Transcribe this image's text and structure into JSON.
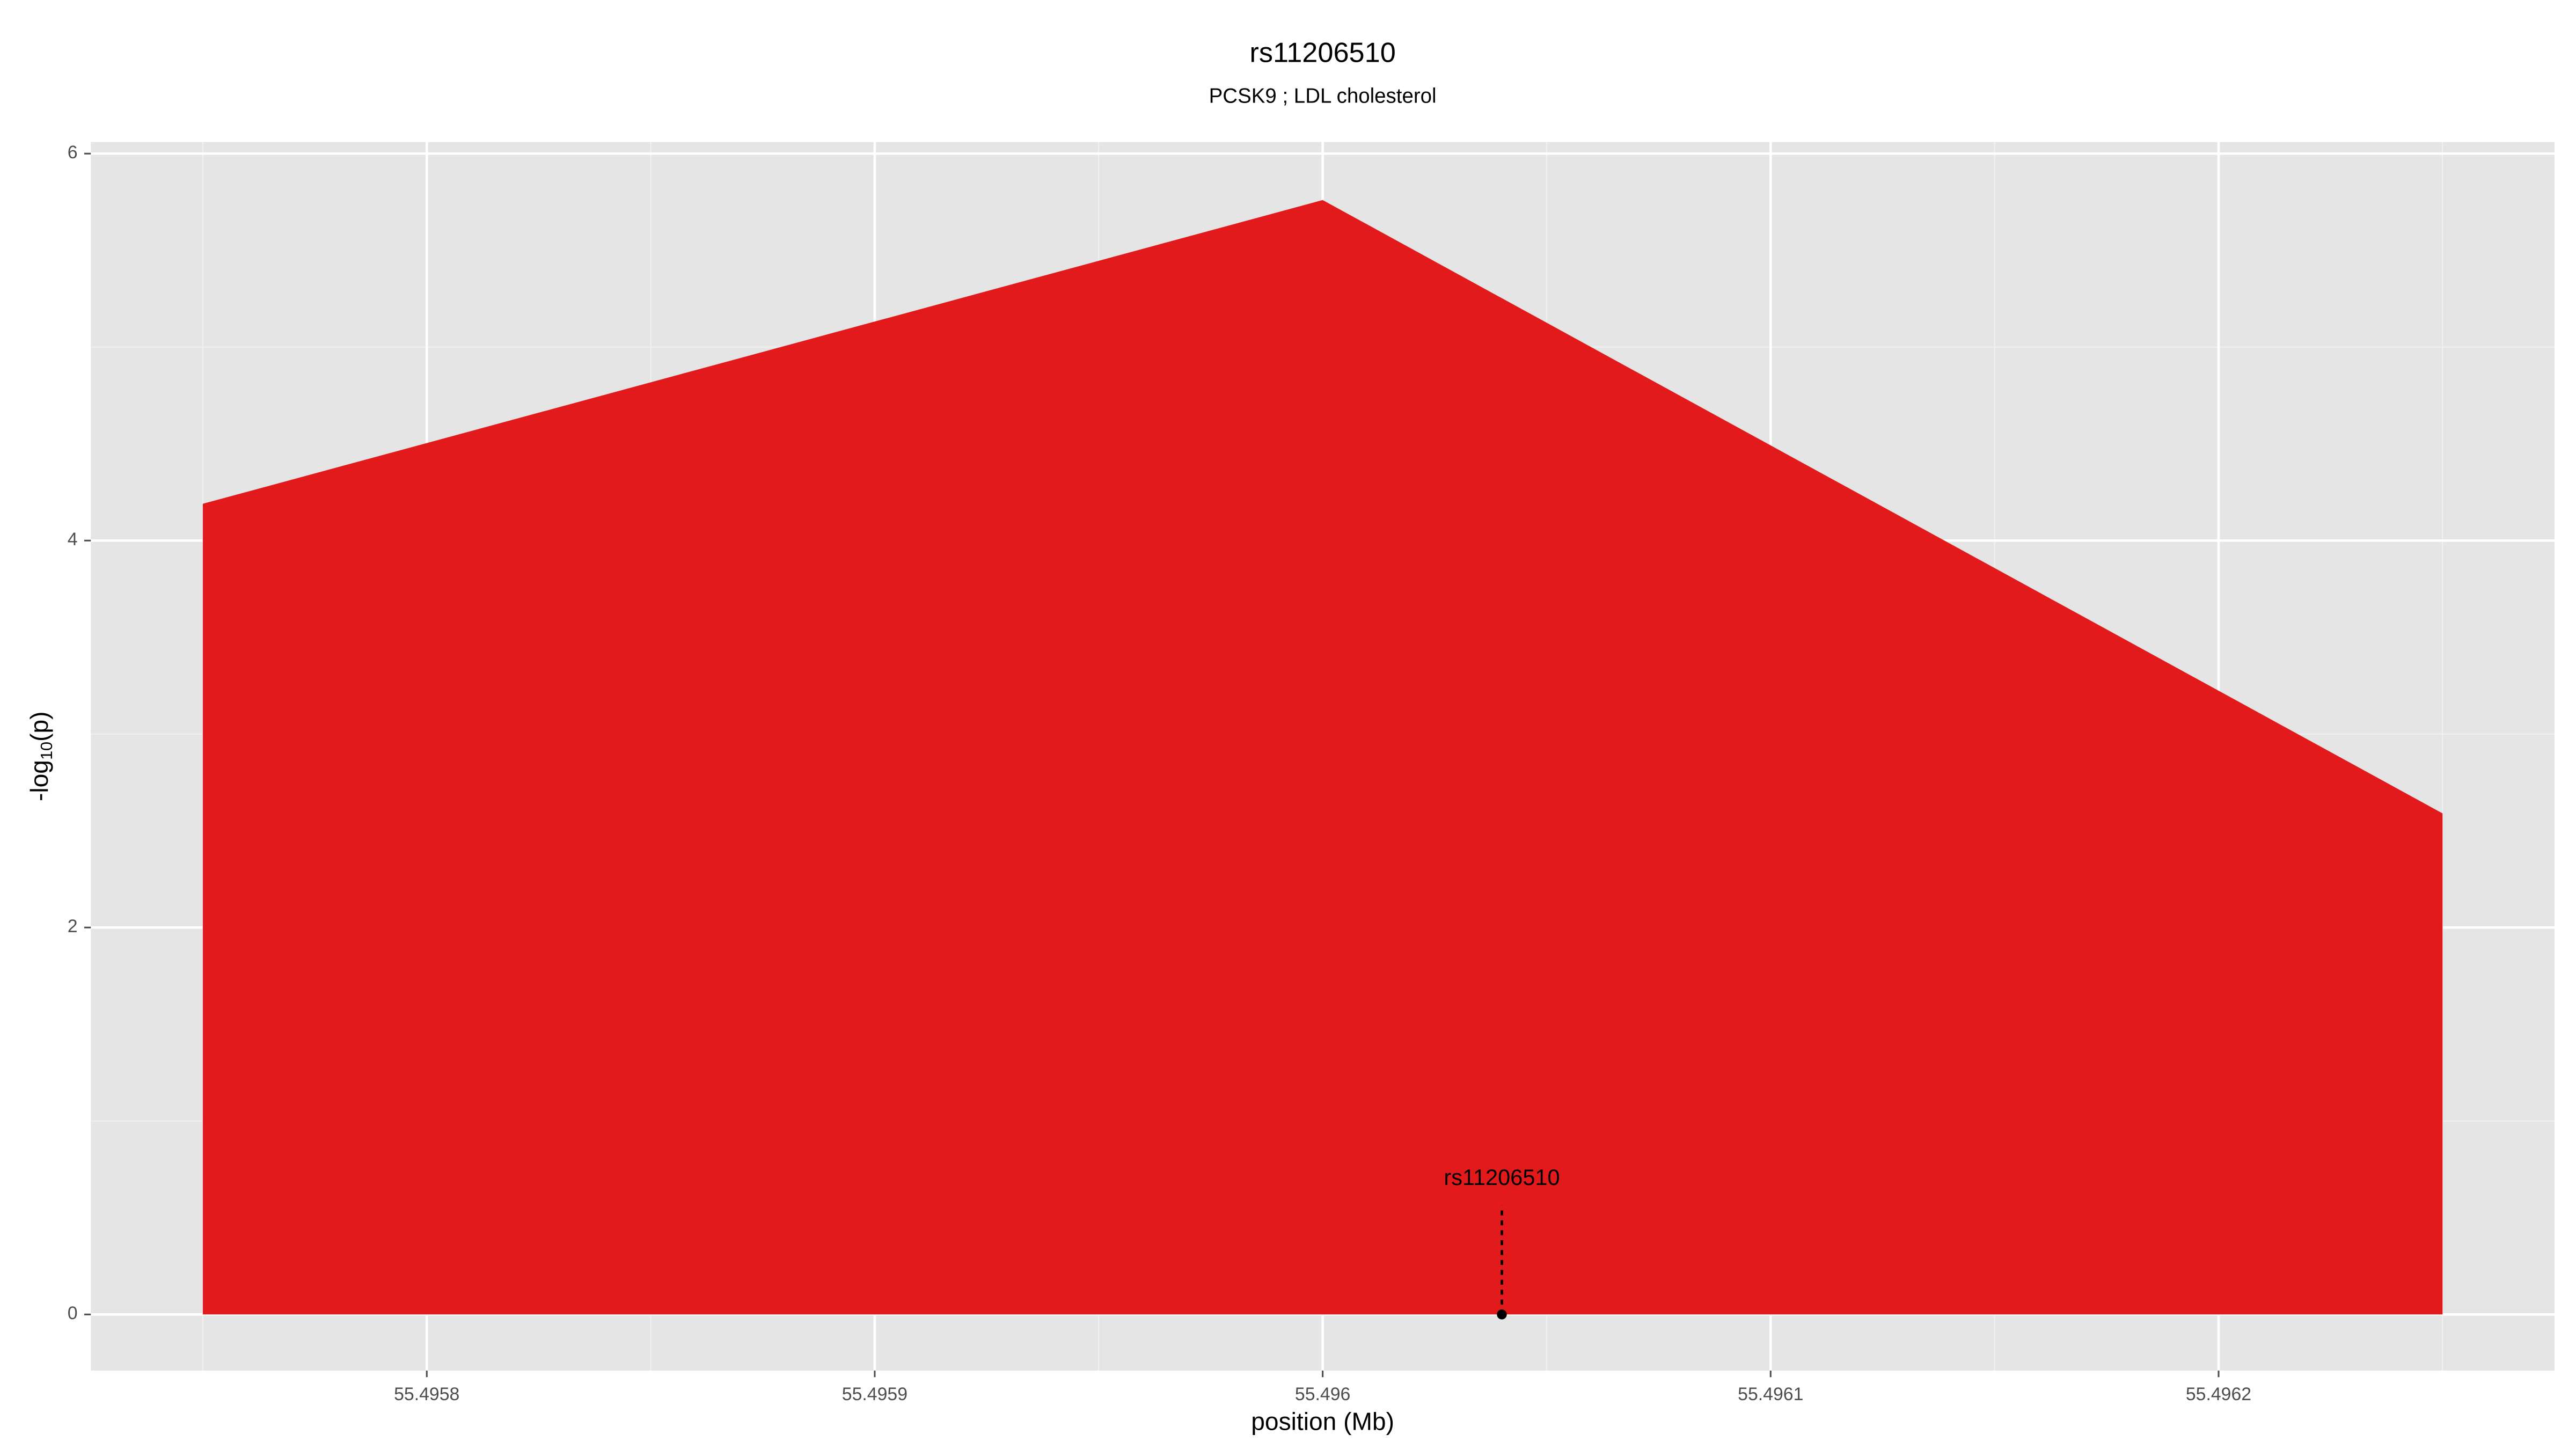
{
  "chart_data": {
    "type": "area",
    "title": "rs11206510",
    "subtitle": "PCSK9 ; LDL cholesterol",
    "x_label": "position (Mb)",
    "y_label": [
      "-log",
      "10",
      "(p)"
    ],
    "x": [
      55.49575,
      55.496,
      55.49625
    ],
    "values": [
      4.19,
      5.76,
      2.59
    ],
    "color": "#e31a1c",
    "xlim": [
      55.495725,
      55.496275
    ],
    "xticks": [
      55.4958,
      55.4959,
      55.496,
      55.4961,
      55.4962
    ],
    "ylim": [
      -0.29,
      6.06
    ],
    "yticks": [
      0,
      2,
      4,
      6
    ],
    "grid": true,
    "minor_grid": true,
    "annotation": {
      "label": "rs11206510",
      "x": 55.49604,
      "y": 0,
      "label_y": 0.7
    }
  }
}
